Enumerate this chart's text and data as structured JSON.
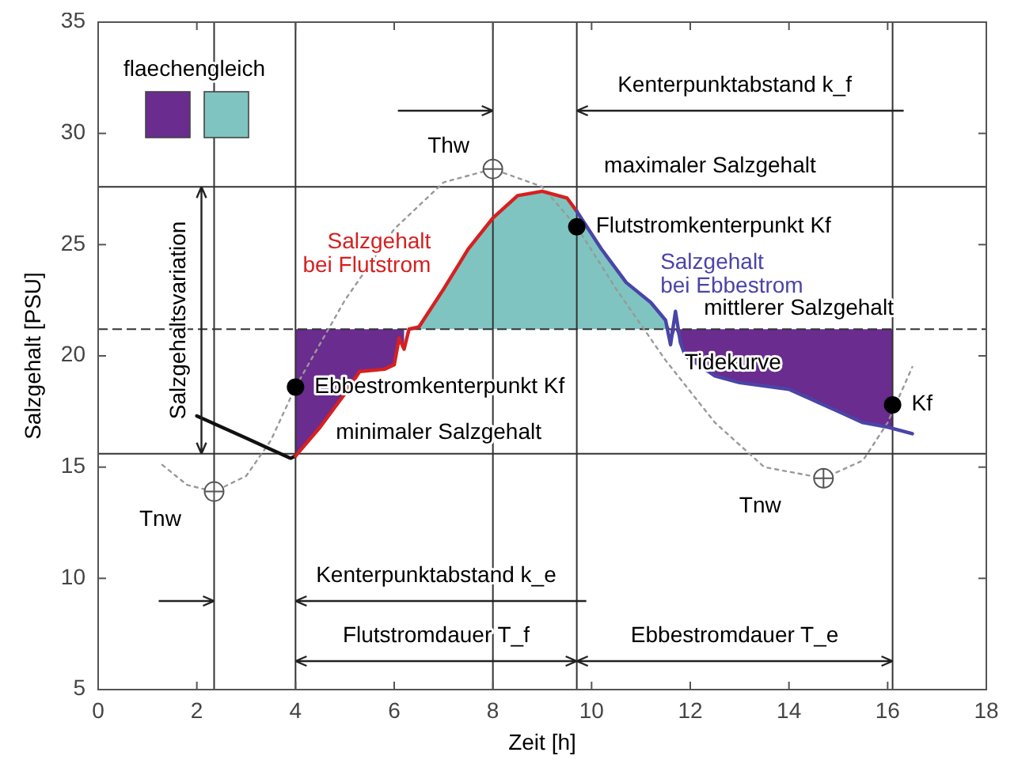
{
  "chart_data": {
    "type": "line",
    "xlabel": "Zeit [h]",
    "ylabel": "Salzgehalt [PSU]",
    "xlim": [
      0,
      18
    ],
    "xticks": [
      0,
      2,
      4,
      6,
      8,
      10,
      12,
      14,
      16,
      18
    ],
    "ylim": [
      5,
      35
    ],
    "yticks": [
      5,
      10,
      15,
      20,
      25,
      30,
      35
    ],
    "legend": "top left",
    "legend_title": "flaechengleich",
    "series": [
      {
        "color": "#6a2c8e",
        "x": [
          4,
          4.5,
          5,
          5.3,
          5.8,
          6,
          6.1,
          6.2
        ],
        "values": [
          null,
          null,
          null,
          null,
          null,
          null,
          null,
          null
        ],
        "lower": [
          15.5,
          16.8,
          18.3,
          19.3,
          19.4,
          19.6,
          20.8,
          20.3
        ],
        "upper": [
          21.2,
          21.2,
          21.2,
          21.2,
          21.2,
          21.2,
          21.2,
          21.2
        ]
      },
      {
        "color": "#7fc4c0",
        "x": [
          6.3,
          6.5,
          7,
          7.5,
          8,
          8.5,
          9,
          9.5,
          9.7,
          10.2,
          10.7,
          11.2,
          11.5,
          11.6
        ],
        "values": [
          null,
          null,
          null,
          null,
          null,
          null,
          null,
          null,
          null,
          null,
          null,
          null,
          null,
          null
        ],
        "lower": [
          21.2,
          21.2,
          21.2,
          21.2,
          21.2,
          21.2,
          21.2,
          21.2,
          21.2,
          21.2,
          21.2,
          21.2,
          21.2,
          21.2
        ],
        "upper": [
          21.2,
          21.3,
          23,
          24.8,
          26.2,
          27.2,
          27.4,
          27.1,
          26.5,
          24.8,
          23.3,
          22.4,
          21.6,
          21.2
        ]
      },
      {
        "color": "#6a2c8e",
        "x": [
          11.6,
          11.7,
          11.8,
          11.9,
          12.5,
          13,
          14,
          15,
          15.5,
          16,
          16.1
        ],
        "values": [
          null,
          null,
          null,
          null,
          null,
          null,
          null,
          null,
          null,
          null,
          null
        ],
        "lower": [
          20.5,
          21.2,
          20.6,
          20,
          19.1,
          18.8,
          18.5,
          17.5,
          17,
          16.8,
          16.8
        ],
        "upper": [
          21.2,
          21.2,
          21.2,
          21.2,
          21.2,
          21.2,
          21.2,
          21.2,
          21.2,
          21.2,
          21.2
        ]
      },
      {
        "color": "#999999",
        "line_style": "dotted",
        "x": [
          1.3,
          1.8,
          2.35,
          3,
          3.5,
          4,
          5,
          6,
          7,
          8,
          9,
          9.7,
          10.5,
          11.5,
          12.5,
          13.5,
          14.7,
          15.5,
          16,
          16.5
        ],
        "values": [
          15.1,
          14.2,
          13.9,
          14.6,
          16.2,
          18.6,
          22.5,
          25.7,
          27.8,
          28.4,
          27.6,
          25.8,
          23,
          19.8,
          17,
          15,
          14.5,
          15.3,
          17,
          19.5
        ]
      },
      {
        "color": "#111111",
        "x": [
          2,
          2.5,
          3,
          3.5,
          3.9,
          4
        ],
        "values": [
          17.3,
          16.8,
          16.3,
          15.8,
          15.4,
          15.5
        ]
      },
      {
        "name": "Salzgehalt bei Flutstrom",
        "color": "#d62020",
        "x": [
          4,
          4.5,
          5,
          5.3,
          5.8,
          6,
          6.1,
          6.2,
          6.3,
          6.5,
          7,
          7.5,
          8,
          8.5,
          9,
          9.5,
          9.7
        ],
        "values": [
          15.5,
          16.8,
          18.3,
          19.3,
          19.4,
          19.6,
          20.8,
          20.3,
          21.2,
          21.3,
          23,
          24.8,
          26.2,
          27.2,
          27.4,
          27.1,
          26.5
        ]
      },
      {
        "name": "Salzgehalt bei Ebbestrom",
        "color": "#4a44a8",
        "x": [
          9.7,
          10.2,
          10.7,
          11.2,
          11.5,
          11.6,
          11.7,
          11.8,
          11.9,
          12.5,
          13,
          14,
          15,
          15.5,
          16,
          16.5
        ],
        "values": [
          26.5,
          24.8,
          23.3,
          22.4,
          21.6,
          20.5,
          22,
          20.6,
          20,
          19.1,
          18.8,
          18.5,
          17.5,
          17,
          16.8,
          16.5
        ]
      },
      {
        "type": "scatter",
        "color": "#555555",
        "marker": "cross",
        "x": [
          2.35,
          8,
          14.7
        ],
        "values": [
          13.9,
          28.4,
          14.5
        ]
      },
      {
        "type": "scatter",
        "color": "#000000",
        "marker": "circle",
        "x": [
          4,
          9.7,
          16.1
        ],
        "values": [
          18.6,
          25.8,
          17.8
        ]
      }
    ],
    "ref_lines": [
      {
        "axis": "y",
        "value": 27.6,
        "label": null
      },
      {
        "axis": "y",
        "value": 21.2,
        "label": null,
        "line_style": "dashed"
      },
      {
        "axis": "y",
        "value": 15.6,
        "label": null
      },
      {
        "axis": "x",
        "value": 2.35,
        "label": null
      },
      {
        "axis": "x",
        "value": 4,
        "label": null
      },
      {
        "axis": "x",
        "value": 8,
        "label": null
      },
      {
        "axis": "x",
        "value": 9.7,
        "label": null
      },
      {
        "axis": "x",
        "value": 16.1,
        "label": null
      }
    ],
    "annotations": [
      {
        "text": "Thw",
        "x": 8,
        "y": 28.4
      },
      {
        "text": "Tnw",
        "x": 2.35,
        "y": 13.9
      },
      {
        "text": "Tnw",
        "x": 14.7,
        "y": 14.5
      },
      "Kenterpunktabstand k_f",
      {
        "text": "maximaler Salzgehalt",
        "x": 12.4,
        "y": 27.6
      },
      {
        "text": "Flutstromkenterpunkt Kf",
        "x": 9.7,
        "y": 25.8
      },
      {
        "text": "mittlerer Salzgehalt",
        "x": 14.2,
        "y": 21.2
      },
      {
        "text": "Ebbestromkenterpunkt Kf",
        "x": 4,
        "y": 18.6
      },
      {
        "text": "minimaler Salzgehalt",
        "x": 6.9,
        "y": 15.6
      },
      {
        "text": "Tidekurve",
        "x": 11.5,
        "y": 19.8
      },
      {
        "text": "Kf",
        "x": 16.1,
        "y": 17.8
      },
      "Salzgehaltsvariation",
      "Kenterpunktabstand k_e",
      "Flutstromdauer T_f",
      "Ebbestromdauer T_e"
    ]
  }
}
